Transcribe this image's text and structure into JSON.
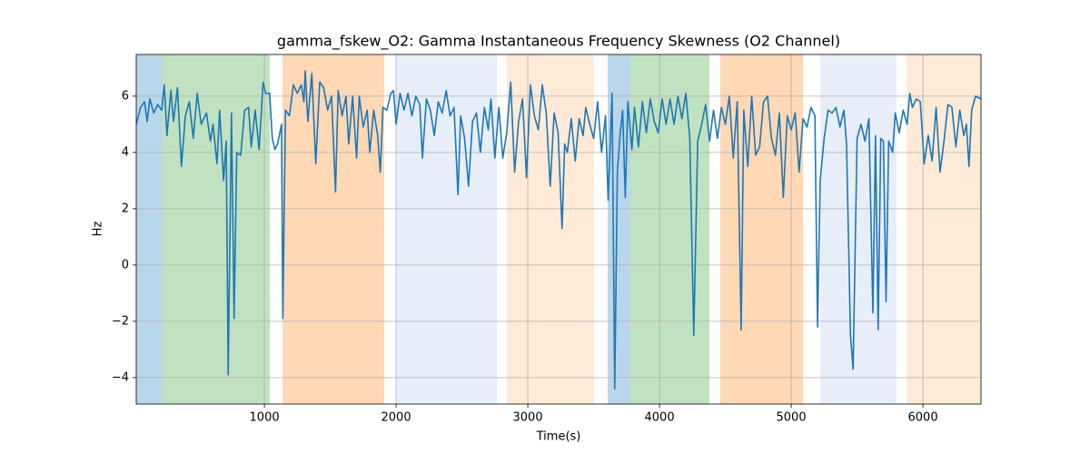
{
  "chart_data": {
    "type": "line",
    "title": "gamma_fskew_O2: Gamma Instantaneous Frequency Skewness (O2 Channel)",
    "xlabel": "Time(s)",
    "ylabel": "Hz",
    "xlim": [
      27,
      6441
    ],
    "ylim": [
      -4.94,
      7.48
    ],
    "xticks": [
      1000,
      2000,
      3000,
      4000,
      5000,
      6000
    ],
    "yticks": [
      {
        "value": -4,
        "label": "−4"
      },
      {
        "value": -2,
        "label": "−2"
      },
      0,
      2,
      4,
      6
    ],
    "grid": true,
    "spans": [
      {
        "start": 27,
        "end": 227,
        "color": "#bad6ea"
      },
      {
        "start": 227,
        "end": 1041,
        "color": "#c0e2c0"
      },
      {
        "start": 1138,
        "end": 1910,
        "color": "#ffd8b6"
      },
      {
        "start": 2000,
        "end": 2766,
        "color": "#e7eef8"
      },
      {
        "start": 2841,
        "end": 3503,
        "color": "#ffead7"
      },
      {
        "start": 3607,
        "end": 3779,
        "color": "#bad6ea"
      },
      {
        "start": 3779,
        "end": 4379,
        "color": "#c0e2c0"
      },
      {
        "start": 4462,
        "end": 5090,
        "color": "#ffd8b6"
      },
      {
        "start": 5221,
        "end": 5800,
        "color": "#e7eef8"
      },
      {
        "start": 5876,
        "end": 6441,
        "color": "#ffead7"
      }
    ],
    "series": [
      {
        "color": "#1f77b4",
        "x": [
          27,
          60,
          90,
          110,
          130,
          160,
          190,
          220,
          240,
          260,
          290,
          310,
          340,
          370,
          400,
          430,
          460,
          490,
          520,
          560,
          590,
          610,
          640,
          660,
          690,
          710,
          725,
          750,
          770,
          790,
          820,
          850,
          880,
          900,
          930,
          960,
          990,
          1010,
          1040,
          1060,
          1080,
          1100,
          1130,
          1140,
          1160,
          1190,
          1220,
          1250,
          1280,
          1300,
          1310,
          1330,
          1360,
          1390,
          1420,
          1450,
          1480,
          1510,
          1540,
          1560,
          1590,
          1620,
          1640,
          1670,
          1700,
          1720,
          1750,
          1780,
          1800,
          1830,
          1860,
          1880,
          1900,
          1930,
          1960,
          1980,
          2000,
          2030,
          2060,
          2090,
          2120,
          2150,
          2180,
          2200,
          2230,
          2260,
          2290,
          2320,
          2350,
          2380,
          2410,
          2440,
          2470,
          2490,
          2520,
          2550,
          2580,
          2610,
          2640,
          2670,
          2700,
          2720,
          2750,
          2780,
          2810,
          2840,
          2870,
          2900,
          2930,
          2960,
          2990,
          3020,
          3050,
          3080,
          3110,
          3140,
          3170,
          3200,
          3230,
          3260,
          3280,
          3300,
          3330,
          3360,
          3390,
          3420,
          3440,
          3470,
          3500,
          3530,
          3560,
          3590,
          3610,
          3640,
          3660,
          3680,
          3700,
          3720,
          3740,
          3760,
          3790,
          3810,
          3840,
          3870,
          3900,
          3930,
          3960,
          3990,
          4020,
          4050,
          4080,
          4110,
          4140,
          4170,
          4200,
          4230,
          4260,
          4290,
          4320,
          4350,
          4380,
          4410,
          4440,
          4470,
          4500,
          4530,
          4560,
          4590,
          4620,
          4640,
          4670,
          4700,
          4730,
          4760,
          4790,
          4820,
          4850,
          4880,
          4910,
          4940,
          4970,
          5000,
          5030,
          5060,
          5090,
          5120,
          5150,
          5180,
          5200,
          5220,
          5250,
          5280,
          5310,
          5340,
          5370,
          5400,
          5420,
          5450,
          5470,
          5500,
          5530,
          5560,
          5590,
          5620,
          5640,
          5660,
          5680,
          5700,
          5720,
          5740,
          5770,
          5790,
          5820,
          5850,
          5880,
          5900,
          5920,
          5950,
          5980,
          6010,
          6040,
          6070,
          6100,
          6130,
          6160,
          6190,
          6220,
          6250,
          6280,
          6310,
          6330,
          6350,
          6370,
          6400,
          6441
        ],
        "values": [
          5.0,
          5.6,
          5.8,
          5.1,
          5.9,
          5.4,
          5.7,
          5.5,
          6.4,
          4.6,
          6.2,
          5.1,
          6.3,
          3.5,
          5.3,
          5.8,
          4.5,
          6.1,
          5.0,
          5.4,
          4.4,
          5.0,
          3.6,
          5.5,
          3.0,
          4.4,
          -3.9,
          5.4,
          -1.9,
          4.0,
          3.9,
          5.5,
          5.6,
          4.2,
          5.5,
          4.1,
          6.5,
          6.1,
          6.1,
          4.5,
          4.1,
          4.3,
          5.0,
          -1.9,
          5.5,
          5.3,
          6.4,
          6.1,
          6.4,
          5.8,
          6.9,
          5.1,
          6.8,
          3.6,
          6.5,
          6.3,
          5.5,
          6.0,
          2.6,
          6.2,
          5.3,
          6.0,
          4.3,
          6.0,
          3.8,
          6.0,
          4.9,
          5.5,
          4.0,
          5.5,
          4.6,
          3.3,
          5.6,
          5.5,
          6.1,
          6.2,
          5.0,
          6.1,
          5.5,
          6.1,
          5.3,
          6.0,
          5.7,
          3.8,
          5.9,
          5.5,
          4.6,
          5.8,
          5.4,
          6.2,
          5.3,
          5.6,
          2.5,
          5.3,
          4.5,
          2.8,
          5.1,
          5.4,
          4.0,
          5.6,
          4.8,
          5.9,
          3.8,
          5.6,
          3.8,
          4.7,
          6.5,
          3.3,
          5.1,
          5.9,
          3.1,
          6.4,
          5.3,
          4.8,
          6.4,
          5.4,
          2.8,
          5.4,
          4.7,
          1.3,
          4.3,
          4.0,
          5.2,
          3.7,
          5.2,
          4.6,
          5.6,
          5.0,
          4.5,
          5.8,
          4.0,
          5.3,
          2.3,
          6.1,
          -4.4,
          3.3,
          4.6,
          5.5,
          2.4,
          5.8,
          4.1,
          5.6,
          4.2,
          5.8,
          4.7,
          5.9,
          5.1,
          4.7,
          5.9,
          5.0,
          5.9,
          5.0,
          6.0,
          5.2,
          6.1,
          4.5,
          -2.5,
          4.4,
          5.0,
          5.7,
          4.4,
          5.5,
          4.5,
          5.6,
          5.0,
          6.0,
          3.8,
          5.8,
          -2.3,
          5.5,
          3.5,
          6.0,
          3.9,
          4.2,
          5.8,
          6.0,
          4.5,
          3.9,
          5.4,
          2.4,
          5.3,
          4.8,
          5.4,
          3.3,
          5.2,
          4.9,
          5.6,
          5.3,
          -2.2,
          3.0,
          4.5,
          5.5,
          5.4,
          5.6,
          4.9,
          5.5,
          4.3,
          -2.5,
          -3.7,
          4.5,
          5.0,
          4.4,
          5.2,
          -1.7,
          4.6,
          -2.3,
          4.5,
          4.4,
          -1.3,
          4.4,
          4.0,
          5.4,
          4.7,
          5.5,
          5.0,
          6.1,
          5.6,
          5.9,
          5.8,
          3.6,
          4.6,
          3.7,
          5.6,
          3.3,
          4.4,
          5.7,
          5.6,
          4.2,
          5.5,
          4.6,
          5.0,
          3.5,
          5.5,
          6.0,
          5.9
        ]
      }
    ]
  }
}
